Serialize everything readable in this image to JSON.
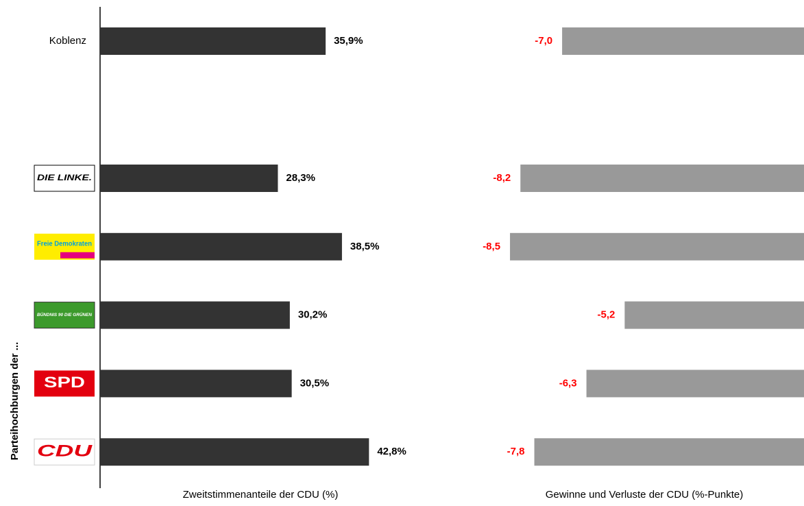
{
  "chart_data": [
    {
      "type": "hbar",
      "ylabel": "Parteihochburgen der ...",
      "xlabel": "Zweitstimmenanteile der CDU (%)",
      "categories": [
        "Koblenz",
        "DIE LINKE.",
        "Freie Demokraten",
        "BÜNDNIS 90 DIE GRÜNEN",
        "SPD",
        "CDU"
      ],
      "values": [
        35.9,
        28.3,
        38.5,
        30.2,
        30.5,
        42.8
      ],
      "value_labels": [
        "35,9%",
        "28,3%",
        "38,5%",
        "30,2%",
        "30,5%",
        "42,8%"
      ],
      "color": "#333333",
      "label_color": "#000000",
      "xlim": [
        0,
        60
      ]
    },
    {
      "type": "hbar",
      "xlabel": "Gewinne und Verluste der CDU (%-Punkte)",
      "values": [
        -7.0,
        -8.2,
        -8.5,
        -5.2,
        -6.3,
        -7.8
      ],
      "value_labels": [
        "-7,0",
        "-8,2",
        "-8,5",
        "-5,2",
        "-6,3",
        "-7,8"
      ],
      "color": "#999999",
      "label_color": "#ff0000",
      "xlim": [
        -10,
        0
      ]
    }
  ]
}
